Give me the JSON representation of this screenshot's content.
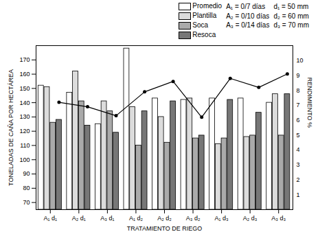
{
  "chart_data": {
    "type": "bar",
    "y_label": "TONELADAS DE CAÑA POR HECTÁREA",
    "y2_label": "RENDIMIENTO %",
    "x_label": "TRATAMIENTO DE RIEGO",
    "categories": [
      "A₁ d₁",
      "A₂ d₁",
      "A₃ d₁",
      "A₁ d₂",
      "A₂ d₂",
      "A₃ d₂",
      "A₁ d₃",
      "A₂ d₃",
      "A₃ d₃"
    ],
    "series": [
      {
        "name": "Promedio",
        "color": "#ffffff",
        "values": [
          152,
          147,
          125,
          178,
          143,
          142,
          143,
          143,
          140
        ]
      },
      {
        "name": "Plantilla",
        "color": "#dcdcdc",
        "values": [
          151,
          162,
          141,
          137,
          130,
          143,
          111,
          116,
          146
        ]
      },
      {
        "name": "Soca",
        "color": "#aaaaaa",
        "values": [
          126,
          141,
          134,
          110,
          112,
          115,
          115,
          117,
          117
        ]
      },
      {
        "name": "Resoca",
        "color": "#777777",
        "values": [
          128,
          124,
          119,
          134,
          141,
          117,
          142,
          133,
          146
        ]
      },
      {
        "type": "line",
        "axis": "y2",
        "color": "#000000",
        "marker": "circle",
        "values": [
          7.2,
          6.9,
          6.3,
          7.9,
          8.6,
          6.2,
          8.8,
          8.2,
          9.1
        ]
      }
    ],
    "annotations": [
      [
        "A₁ = 0/7 días",
        "d₁ = 50 mm"
      ],
      [
        "A₂ = 0/10 días",
        "d₂ = 60 mm"
      ],
      [
        "A₃ = 0/14 días",
        "d₃ = 70 mm"
      ]
    ],
    "ylim": [
      65,
      180
    ],
    "yticks": [
      70,
      80,
      90,
      100,
      110,
      120,
      130,
      140,
      150,
      160,
      170
    ],
    "y2lim": [
      0,
      11
    ],
    "y2ticks": [
      1,
      2,
      3,
      4,
      5,
      6,
      7,
      8,
      9,
      10
    ]
  }
}
